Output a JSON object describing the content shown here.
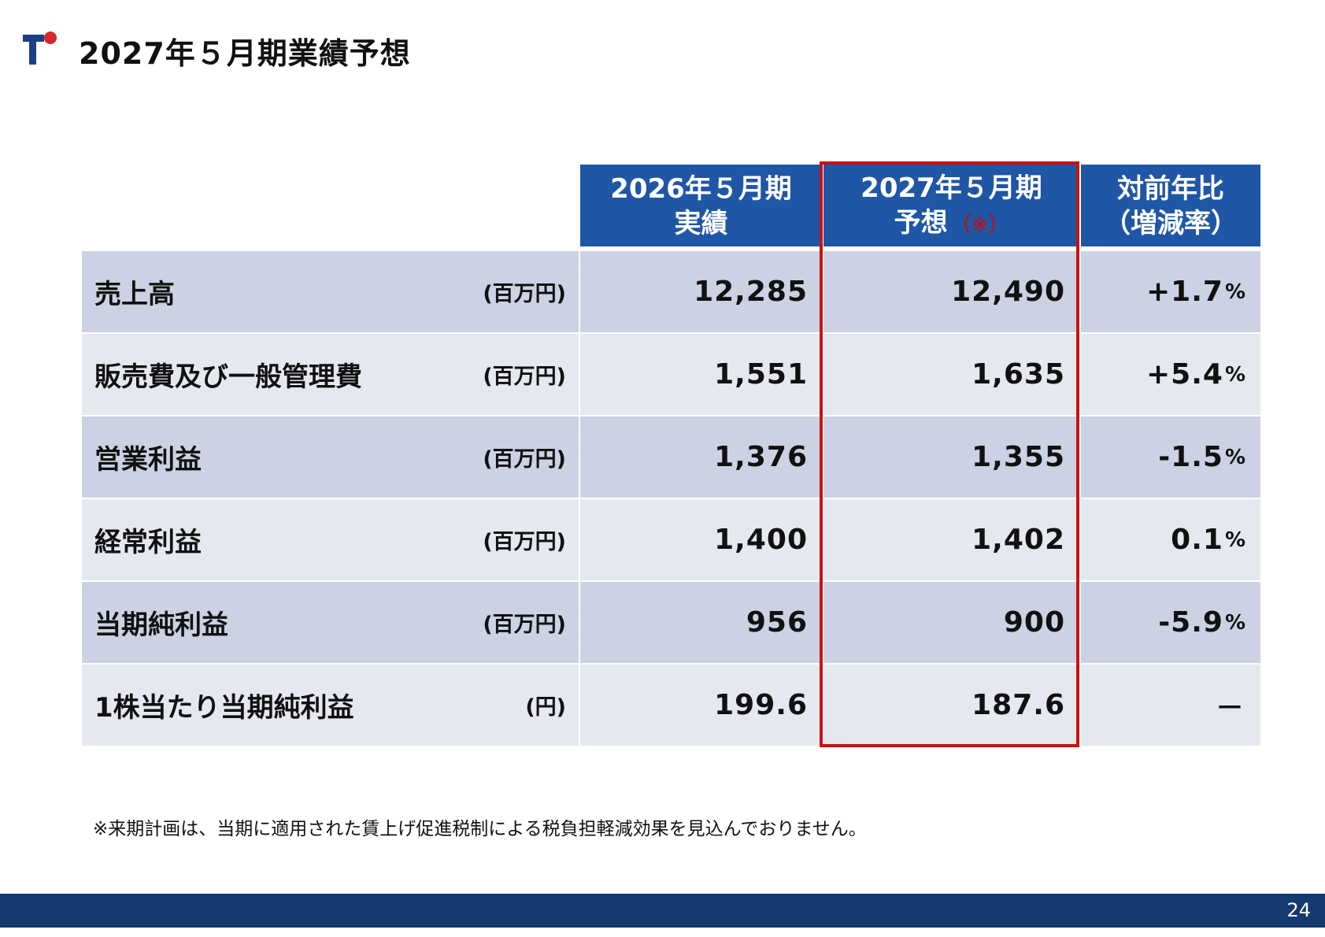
{
  "header": {
    "title": "2027年５月期業績予想"
  },
  "table": {
    "columns": [
      {
        "line1": "2026年５月期",
        "line2": "実績",
        "note": ""
      },
      {
        "line1": "2027年５月期",
        "line2": "予想",
        "note": "（※）"
      },
      {
        "line1": "対前年比",
        "line2": "（増減率）",
        "note": ""
      }
    ],
    "rows": [
      {
        "label": "売上高",
        "unit": "(百万円)",
        "actual": "12,285",
        "forecast": "12,490",
        "change": "+1.7",
        "change_unit": "%"
      },
      {
        "label": "販売費及び一般管理費",
        "unit": "(百万円)",
        "actual": "1,551",
        "forecast": "1,635",
        "change": "+5.4",
        "change_unit": "%"
      },
      {
        "label": "営業利益",
        "unit": "(百万円)",
        "actual": "1,376",
        "forecast": "1,355",
        "change": "-1.5",
        "change_unit": "%"
      },
      {
        "label": "経常利益",
        "unit": "(百万円)",
        "actual": "1,400",
        "forecast": "1,402",
        "change": "0.1",
        "change_unit": "%"
      },
      {
        "label": "当期純利益",
        "unit": "(百万円)",
        "actual": "956",
        "forecast": "900",
        "change": "-5.9",
        "change_unit": "%"
      },
      {
        "label": "1株当たり当期純利益",
        "unit": "(円)",
        "actual": "199.6",
        "forecast": "187.6",
        "change": "－",
        "change_unit": ""
      }
    ]
  },
  "footnote": "※来期計画は、当期に適用された賃上げ促進税制による税負担軽減効果を見込んでおりません。",
  "footer": {
    "page_number": "24"
  },
  "colors": {
    "header_blue": "#1f56a5",
    "row_dark": "#ccd2e3",
    "row_light": "#e6e8f0",
    "highlight_red": "#cc1111",
    "footer_navy": "#153a70"
  },
  "icons": {
    "logo": "company-logo-t-with-red-dot"
  }
}
